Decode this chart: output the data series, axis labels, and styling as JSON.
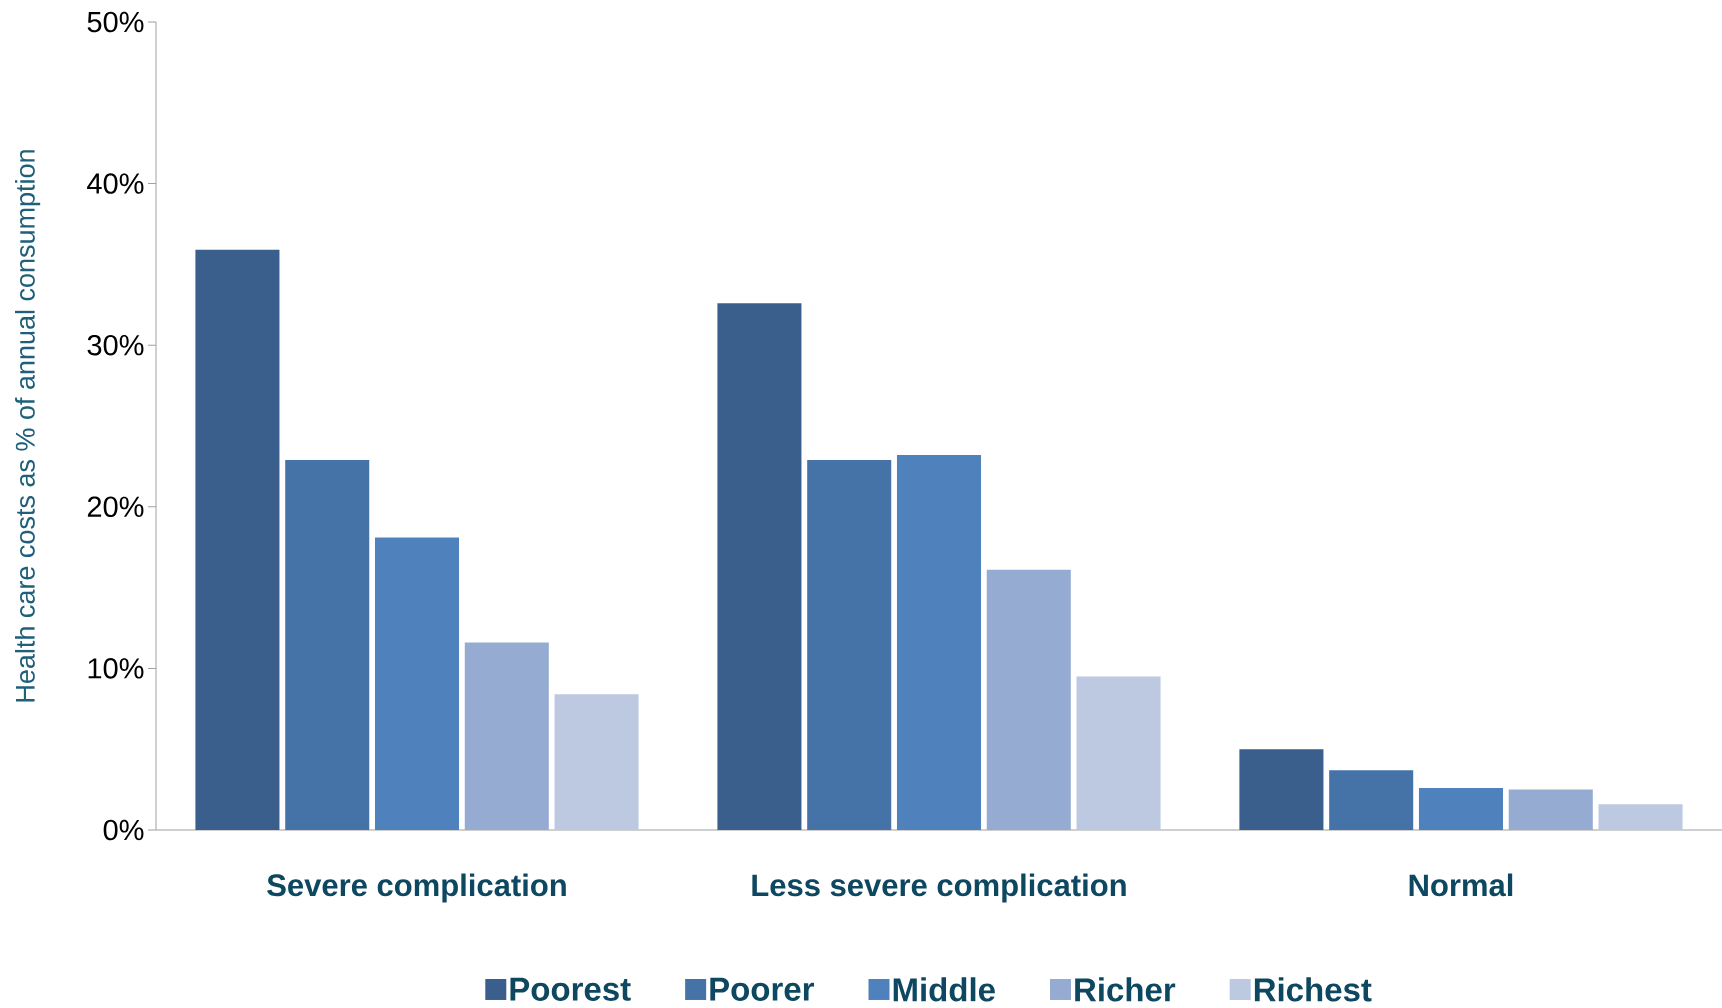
{
  "chart_data": {
    "type": "bar",
    "ylabel": "Health care costs as % of annual consumption",
    "categories": [
      "Severe complication",
      "Less severe complication",
      "Normal"
    ],
    "series": [
      {
        "name": "Poorest",
        "color": "#3a5f8c",
        "values": [
          35.9,
          32.6,
          5.0
        ]
      },
      {
        "name": "Poorer",
        "color": "#4573a8",
        "values": [
          22.9,
          22.9,
          3.7
        ]
      },
      {
        "name": "Middle",
        "color": "#4f81bd",
        "values": [
          18.1,
          23.2,
          2.6
        ]
      },
      {
        "name": "Richer",
        "color": "#95abd2",
        "values": [
          11.6,
          16.1,
          2.5
        ]
      },
      {
        "name": "Richest",
        "color": "#bcc9e1",
        "values": [
          8.4,
          9.5,
          1.6
        ]
      }
    ],
    "ylim": [
      0,
      50
    ],
    "yticks": [
      {
        "value": 0,
        "label": "0%"
      },
      {
        "value": 10,
        "label": "10%"
      },
      {
        "value": 20,
        "label": "20%"
      },
      {
        "value": 30,
        "label": "30%"
      },
      {
        "value": 40,
        "label": "40%"
      },
      {
        "value": 50,
        "label": "50%"
      }
    ],
    "grid": false,
    "legend": "bottom"
  }
}
